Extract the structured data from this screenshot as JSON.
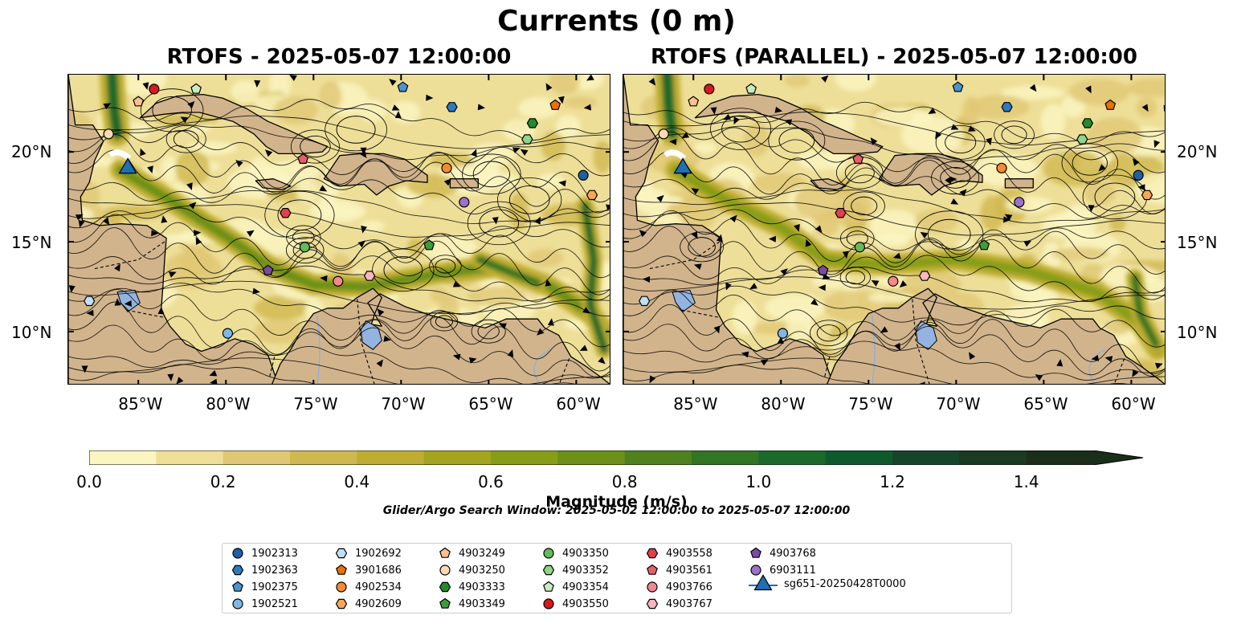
{
  "figure": {
    "title": "Currents (0 m)",
    "panels": [
      {
        "title": "RTOFS - 2025-05-07 12:00:00"
      },
      {
        "title": "RTOFS (PARALLEL) - 2025-05-07 12:00:00"
      }
    ],
    "lon_ticks": [
      "85°W",
      "80°W",
      "75°W",
      "70°W",
      "65°W",
      "60°W"
    ],
    "lat_ticks": [
      "20°N",
      "15°N",
      "10°N"
    ],
    "lon_range": [
      -89.0,
      -58.0
    ],
    "lat_range": [
      7.0,
      24.3
    ]
  },
  "colorbar": {
    "label": "Magnitude (m/s)",
    "ticks": [
      "0.0",
      "0.2",
      "0.4",
      "0.6",
      "0.8",
      "1.0",
      "1.2",
      "1.4"
    ],
    "tick_values": [
      0.0,
      0.2,
      0.4,
      0.6,
      0.8,
      1.0,
      1.2,
      1.4
    ],
    "range": [
      0.0,
      1.5
    ],
    "extend": "max",
    "colors": [
      "#fbf5c2",
      "#eedf98",
      "#e0c774",
      "#cfb84f",
      "#bead32",
      "#a3a51f",
      "#879d17",
      "#6c9019",
      "#4f821f",
      "#327523",
      "#1b6a2b",
      "#0e5a2c",
      "#16452c",
      "#1a3a22",
      "#1a2e19"
    ]
  },
  "search_window": "Glider/Argo Search Window: 2025-05-02 12:00:00 to 2025-05-07 12:00:00",
  "legend": [
    {
      "label": "1902313",
      "marker": "circle",
      "color": "#1f5fa6"
    },
    {
      "label": "1902363",
      "marker": "hexagon",
      "color": "#2b7bc0"
    },
    {
      "label": "1902375",
      "marker": "pentagon",
      "color": "#4a94d0"
    },
    {
      "label": "1902521",
      "marker": "circle",
      "color": "#7fb8e6"
    },
    {
      "label": "1902692",
      "marker": "hexagon",
      "color": "#bfe0f8"
    },
    {
      "label": "3901686",
      "marker": "pentagon",
      "color": "#e8710a"
    },
    {
      "label": "4902534",
      "marker": "circle",
      "color": "#f58b31"
    },
    {
      "label": "4902609",
      "marker": "hexagon",
      "color": "#fba55c"
    },
    {
      "label": "4903249",
      "marker": "pentagon",
      "color": "#fdc08f"
    },
    {
      "label": "4903250",
      "marker": "circle",
      "color": "#fdd9b5"
    },
    {
      "label": "4903333",
      "marker": "hexagon",
      "color": "#238b2a"
    },
    {
      "label": "4903349",
      "marker": "pentagon",
      "color": "#3c9e3a"
    },
    {
      "label": "4903350",
      "marker": "circle",
      "color": "#62bb5a"
    },
    {
      "label": "4903352",
      "marker": "hexagon",
      "color": "#92d489"
    },
    {
      "label": "4903354",
      "marker": "pentagon",
      "color": "#c7ecbf"
    },
    {
      "label": "4903550",
      "marker": "circle",
      "color": "#d7191c"
    },
    {
      "label": "4903558",
      "marker": "hexagon",
      "color": "#e0404a"
    },
    {
      "label": "4903561",
      "marker": "pentagon",
      "color": "#e85f6b"
    },
    {
      "label": "4903766",
      "marker": "circle",
      "color": "#f3888f"
    },
    {
      "label": "4903767",
      "marker": "hexagon",
      "color": "#f8b7be"
    },
    {
      "label": "4903768",
      "marker": "pentagon",
      "color": "#7a4aa6"
    },
    {
      "label": "6903111",
      "marker": "circle",
      "color": "#9a72c8"
    },
    {
      "label": "sg651-20250428T0000",
      "marker": "triangle",
      "color": "#1f6fb4"
    }
  ],
  "floats": [
    {
      "id": "4903550",
      "lon": -84.1,
      "lat": 23.5
    },
    {
      "id": "4903354",
      "lon": -81.7,
      "lat": 23.5
    },
    {
      "id": "4903249",
      "lon": -85.0,
      "lat": 22.8
    },
    {
      "id": "4903250",
      "lon": -86.7,
      "lat": 21.0
    },
    {
      "id": "1902375",
      "lon": -69.9,
      "lat": 23.6
    },
    {
      "id": "1902363",
      "lon": -67.1,
      "lat": 22.5
    },
    {
      "id": "3901686",
      "lon": -61.2,
      "lat": 22.6
    },
    {
      "id": "4903333",
      "lon": -62.5,
      "lat": 21.6
    },
    {
      "id": "4903352",
      "lon": -62.8,
      "lat": 20.7
    },
    {
      "id": "4903561",
      "lon": -75.6,
      "lat": 19.6
    },
    {
      "id": "4902534",
      "lon": -67.4,
      "lat": 19.1
    },
    {
      "id": "1902313",
      "lon": -59.6,
      "lat": 18.7
    },
    {
      "id": "4902609",
      "lon": -59.1,
      "lat": 17.6
    },
    {
      "id": "6903111",
      "lon": -66.4,
      "lat": 17.2
    },
    {
      "id": "4903558",
      "lon": -76.6,
      "lat": 16.6
    },
    {
      "id": "4903350",
      "lon": -75.5,
      "lat": 14.7
    },
    {
      "id": "4903349",
      "lon": -68.4,
      "lat": 14.8
    },
    {
      "id": "4903768",
      "lon": -77.6,
      "lat": 13.4
    },
    {
      "id": "4903766",
      "lon": -73.6,
      "lat": 12.8
    },
    {
      "id": "4903767",
      "lon": -71.8,
      "lat": 13.1
    },
    {
      "id": "1902692",
      "lon": -87.8,
      "lat": 11.7
    },
    {
      "id": "1902521",
      "lon": -79.9,
      "lat": 9.9
    }
  ],
  "glider": {
    "id": "sg651-20250428T0000",
    "lon": -85.6,
    "lat": 19.2
  }
}
